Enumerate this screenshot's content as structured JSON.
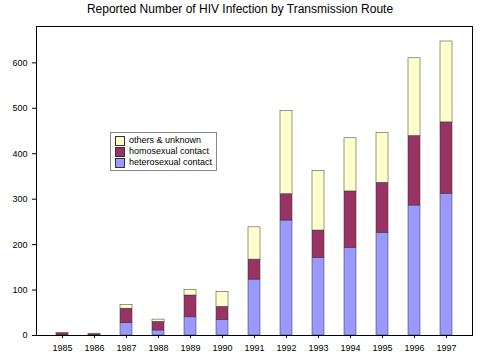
{
  "chart_data": {
    "type": "bar",
    "title": "Reported Number of HIV Infection by Transmission Route",
    "categories": [
      "1985",
      "1986",
      "1987",
      "1988",
      "1989",
      "1990",
      "1991",
      "1992",
      "1993",
      "1994",
      "1995",
      "1996",
      "1997"
    ],
    "series": [
      {
        "name": "heterosexual contact",
        "color": "#9999ff",
        "values": [
          1,
          1,
          27,
          11,
          40,
          34,
          123,
          253,
          170,
          193,
          226,
          286,
          312
        ]
      },
      {
        "name": "homosexual contact",
        "color": "#993366",
        "values": [
          4,
          2,
          32,
          19,
          48,
          29,
          44,
          58,
          61,
          124,
          110,
          153,
          157
        ]
      },
      {
        "name": "others & unknown",
        "color": "#ffffcc",
        "values": [
          1,
          1,
          8,
          5,
          12,
          33,
          71,
          183,
          131,
          117,
          110,
          171,
          178
        ]
      }
    ],
    "stacked": true,
    "legend": "left",
    "grid": false,
    "ylim": [
      0,
      680
    ],
    "yticks": [
      0,
      100,
      200,
      300,
      400,
      500,
      600
    ]
  }
}
